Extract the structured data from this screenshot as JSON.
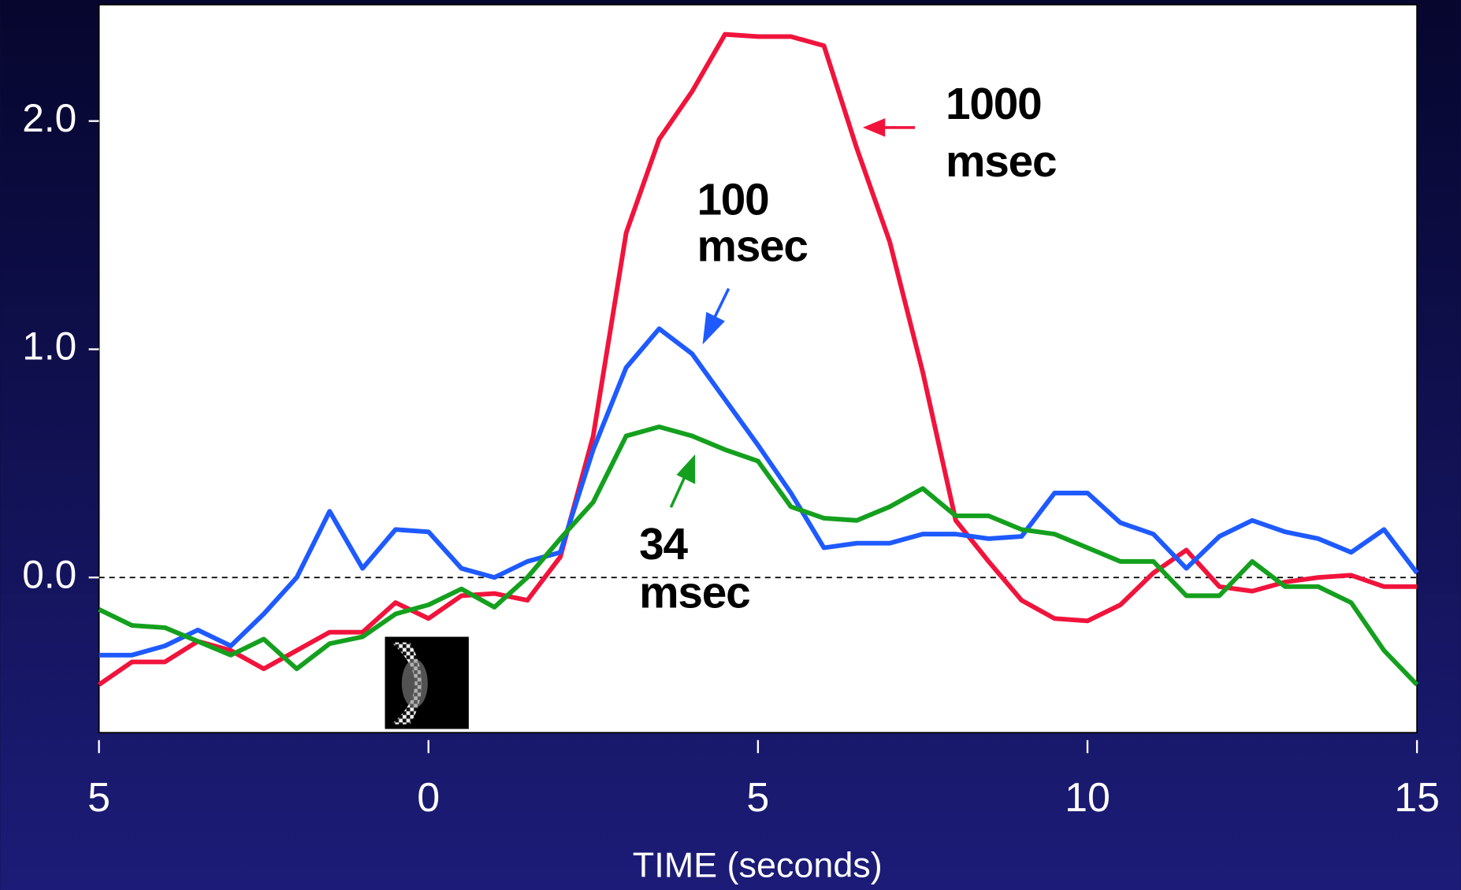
{
  "chart_data": {
    "type": "line",
    "xlabel": "TIME (seconds)",
    "x": [
      -5,
      -4.5,
      -4,
      -3.5,
      -3,
      -2.5,
      -2,
      -1.5,
      -1,
      -0.5,
      0,
      0.5,
      1,
      1.5,
      2,
      2.5,
      3,
      3.5,
      4,
      4.5,
      5,
      5.5,
      6,
      6.5,
      7,
      7.5,
      8,
      8.5,
      9,
      9.5,
      10,
      10.5,
      11,
      11.5,
      12,
      12.5,
      13,
      13.5,
      14,
      14.5,
      15
    ],
    "series": [
      {
        "color": "#f0143c",
        "values": [
          -0.47,
          -0.37,
          -0.37,
          -0.28,
          -0.32,
          -0.4,
          -0.32,
          -0.24,
          -0.24,
          -0.11,
          -0.18,
          -0.08,
          -0.07,
          -0.1,
          0.09,
          0.62,
          1.51,
          1.92,
          2.13,
          2.38,
          2.37,
          2.37,
          2.33,
          1.88,
          1.47,
          0.9,
          0.25,
          0.07,
          -0.1,
          -0.18,
          -0.19,
          -0.12,
          0.02,
          0.12,
          -0.04,
          -0.06,
          -0.02,
          0.0,
          0.01,
          -0.04,
          -0.04
        ]
      },
      {
        "color": "#1e5aff",
        "values": [
          -0.34,
          -0.34,
          -0.3,
          -0.23,
          -0.3,
          -0.16,
          0.0,
          0.29,
          0.04,
          0.21,
          0.2,
          0.04,
          0.0,
          0.07,
          0.11,
          0.56,
          0.92,
          1.09,
          0.98,
          0.78,
          0.58,
          0.37,
          0.13,
          0.15,
          0.15,
          0.19,
          0.19,
          0.17,
          0.18,
          0.37,
          0.37,
          0.24,
          0.19,
          0.04,
          0.18,
          0.25,
          0.2,
          0.17,
          0.11,
          0.21,
          0.02
        ]
      },
      {
        "color": "#14a01e",
        "values": [
          -0.14,
          -0.21,
          -0.22,
          -0.28,
          -0.34,
          -0.27,
          -0.4,
          -0.29,
          -0.26,
          -0.16,
          -0.12,
          -0.05,
          -0.13,
          0.0,
          0.17,
          0.33,
          0.62,
          0.66,
          0.62,
          0.56,
          0.51,
          0.31,
          0.26,
          0.25,
          0.31,
          0.39,
          0.27,
          0.27,
          0.21,
          0.19,
          0.13,
          0.07,
          0.07,
          -0.08,
          -0.08,
          0.07,
          -0.04,
          -0.04,
          -0.11,
          -0.32,
          -0.47
        ]
      }
    ],
    "annotations": [
      {
        "lines": [
          "1000",
          "msec"
        ]
      },
      {
        "lines": [
          "100",
          "msec"
        ]
      },
      {
        "lines": [
          "34",
          "msec"
        ]
      }
    ],
    "xlim": [
      -5,
      15
    ],
    "xticks": [
      {
        "value": -5,
        "label": "5"
      },
      0,
      5,
      10,
      15
    ],
    "ylim": [
      -0.68,
      2.51
    ],
    "yticks": [
      {
        "value": 0,
        "label": "0.0"
      },
      {
        "value": 1,
        "label": "1.0"
      },
      {
        "value": 2,
        "label": "2.0"
      }
    ]
  }
}
